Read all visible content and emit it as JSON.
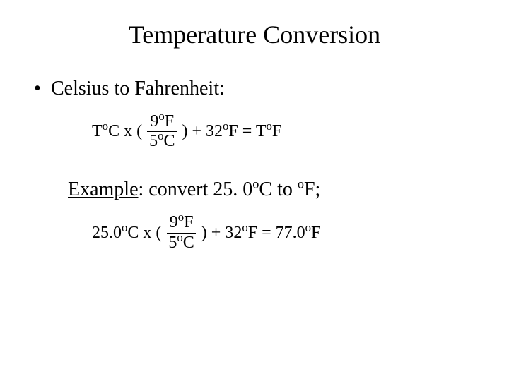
{
  "title": "Temperature Conversion",
  "bullet": "Celsius to Fahrenheit:",
  "example_label": "Example",
  "example_rest": ": convert 25. 0",
  "example_unit1_deg": "o",
  "example_unit1_sym": "C to ",
  "example_unit2_deg": "o",
  "example_unit2_sym": "F;",
  "formula1": {
    "lead_T": "T",
    "lead_deg": "o",
    "lead_sym": "C x (",
    "num_val": "9",
    "num_deg": "o",
    "num_sym": "F",
    "den_val": "5",
    "den_deg": "o",
    "den_sym": "C",
    "close": ")",
    "plus": " + 32",
    "plus_deg": "o",
    "plus_sym": "F = T",
    "res_deg": "o",
    "res_sym": "F"
  },
  "formula2": {
    "lead_T": "25.0",
    "lead_deg": "o",
    "lead_sym": "C x (",
    "num_val": "9",
    "num_deg": "o",
    "num_sym": "F",
    "den_val": "5",
    "den_deg": "o",
    "den_sym": "C",
    "close": ")",
    "plus": " + 32",
    "plus_deg": "o",
    "plus_sym": "F = 77.0",
    "res_deg": "o",
    "res_sym": "F"
  },
  "colors": {
    "text": "#000000",
    "background": "#ffffff"
  },
  "fonts": {
    "family": "Times New Roman",
    "title_size_pt": 36,
    "body_size_pt": 28,
    "formula_size_pt": 24
  }
}
